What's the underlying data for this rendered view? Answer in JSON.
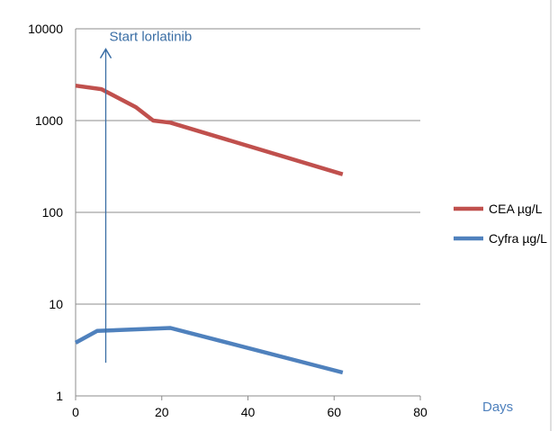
{
  "chart_data": {
    "type": "line",
    "xlabel": "Days",
    "ylabel": "",
    "yscale": "log",
    "ylim": [
      1,
      10000
    ],
    "xlim": [
      0,
      80
    ],
    "x_ticks": [
      0,
      20,
      40,
      60,
      80
    ],
    "y_ticks": [
      1,
      10,
      100,
      1000,
      10000
    ],
    "x_tick_labels": [
      "0",
      "20",
      "40",
      "60",
      "80"
    ],
    "y_tick_labels": [
      "1",
      "10",
      "100",
      "1000",
      "10000"
    ],
    "grid": "horizontal",
    "legend_position": "right",
    "series": [
      {
        "name": "CEA µg/L",
        "color": "#c0504d",
        "points": [
          [
            0,
            2400
          ],
          [
            6,
            2200
          ],
          [
            14,
            1400
          ],
          [
            18,
            1000
          ],
          [
            22,
            950
          ],
          [
            62,
            260
          ]
        ]
      },
      {
        "name": "Cyfra µg/L",
        "color": "#4f81bd",
        "points": [
          [
            0,
            3.8
          ],
          [
            5,
            5.1
          ],
          [
            22,
            5.5
          ],
          [
            62,
            1.8
          ]
        ]
      }
    ],
    "annotations": [
      {
        "text": "Start lorlatinib",
        "x": 7,
        "y_from": 2.3,
        "y_to": 6000,
        "color": "#3a6ea5"
      }
    ]
  }
}
